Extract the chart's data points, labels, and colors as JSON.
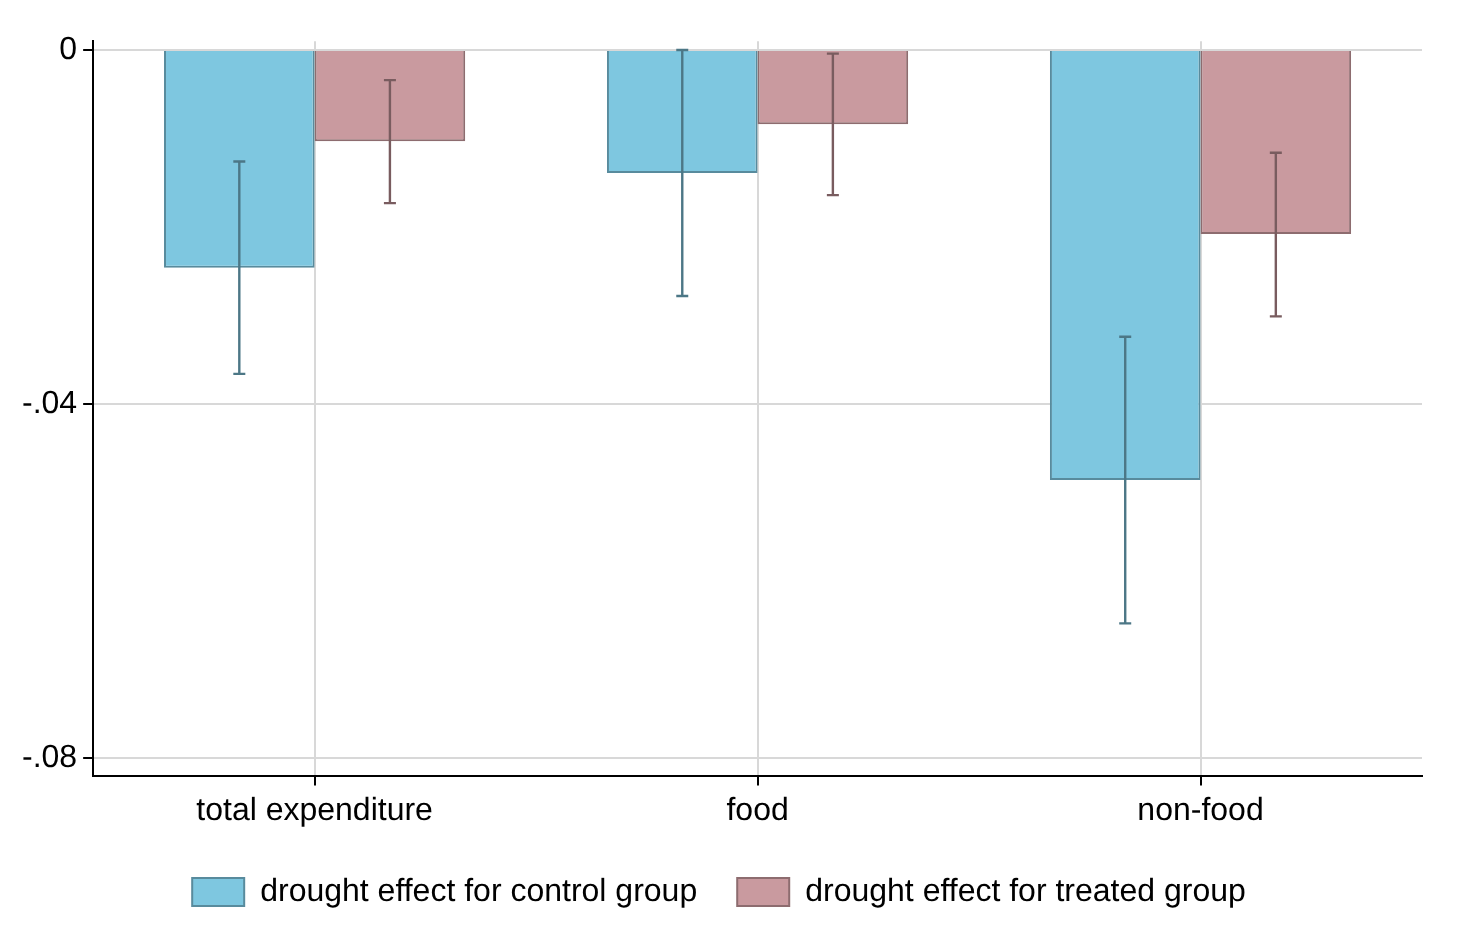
{
  "chart_data": {
    "type": "bar",
    "categories": [
      "total expenditure",
      "food",
      "non-food"
    ],
    "series": [
      {
        "name": "drought effect for control group",
        "color": "#7ec7e0",
        "values": [
          -0.0246,
          -0.0139,
          -0.0486
        ],
        "errors": [
          [
            -0.0366,
            -0.0126
          ],
          [
            -0.0278,
            0
          ],
          [
            -0.0648,
            -0.0324
          ]
        ]
      },
      {
        "name": "drought effect for treated group",
        "color": "#c99a9f",
        "values": [
          -0.0103,
          -0.0084,
          -0.0208
        ],
        "errors": [
          [
            -0.0173,
            -0.0034
          ],
          [
            -0.0164,
            -0.0004
          ],
          [
            -0.0301,
            -0.0116
          ]
        ]
      }
    ],
    "ylim": [
      -0.082,
      0.001
    ],
    "yticks": [
      {
        "value": 0,
        "label": "0"
      },
      {
        "value": -0.04,
        "label": "-.04"
      },
      {
        "value": -0.08,
        "label": "-.08"
      }
    ],
    "grid": true,
    "legend": "bottom"
  }
}
